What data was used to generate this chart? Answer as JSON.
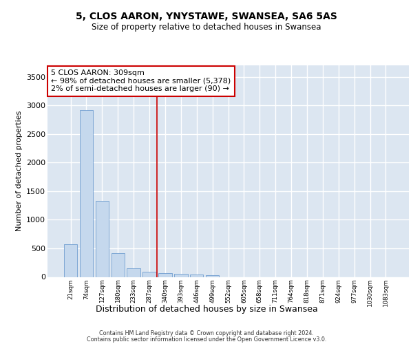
{
  "title1": "5, CLOS AARON, YNYSTAWE, SWANSEA, SA6 5AS",
  "title2": "Size of property relative to detached houses in Swansea",
  "xlabel": "Distribution of detached houses by size in Swansea",
  "ylabel": "Number of detached properties",
  "bar_color": "#c5d8ed",
  "bar_edge_color": "#5b8fc9",
  "categories": [
    "21sqm",
    "74sqm",
    "127sqm",
    "180sqm",
    "233sqm",
    "287sqm",
    "340sqm",
    "393sqm",
    "446sqm",
    "499sqm",
    "552sqm",
    "605sqm",
    "658sqm",
    "711sqm",
    "764sqm",
    "818sqm",
    "871sqm",
    "924sqm",
    "977sqm",
    "1030sqm",
    "1083sqm"
  ],
  "values": [
    570,
    2920,
    1330,
    410,
    155,
    90,
    65,
    50,
    45,
    35,
    0,
    0,
    0,
    0,
    0,
    0,
    0,
    0,
    0,
    0,
    0
  ],
  "ylim": [
    0,
    3700
  ],
  "yticks": [
    0,
    500,
    1000,
    1500,
    2000,
    2500,
    3000,
    3500
  ],
  "annotation_text": "5 CLOS AARON: 309sqm\n← 98% of detached houses are smaller (5,378)\n2% of semi-detached houses are larger (90) →",
  "annotation_box_color": "#ffffff",
  "annotation_box_edge": "#cc0000",
  "vline_x": 5.5,
  "vline_color": "#cc0000",
  "background_color": "#dce6f1",
  "grid_color": "#ffffff",
  "footer1": "Contains HM Land Registry data © Crown copyright and database right 2024.",
  "footer2": "Contains public sector information licensed under the Open Government Licence v3.0."
}
